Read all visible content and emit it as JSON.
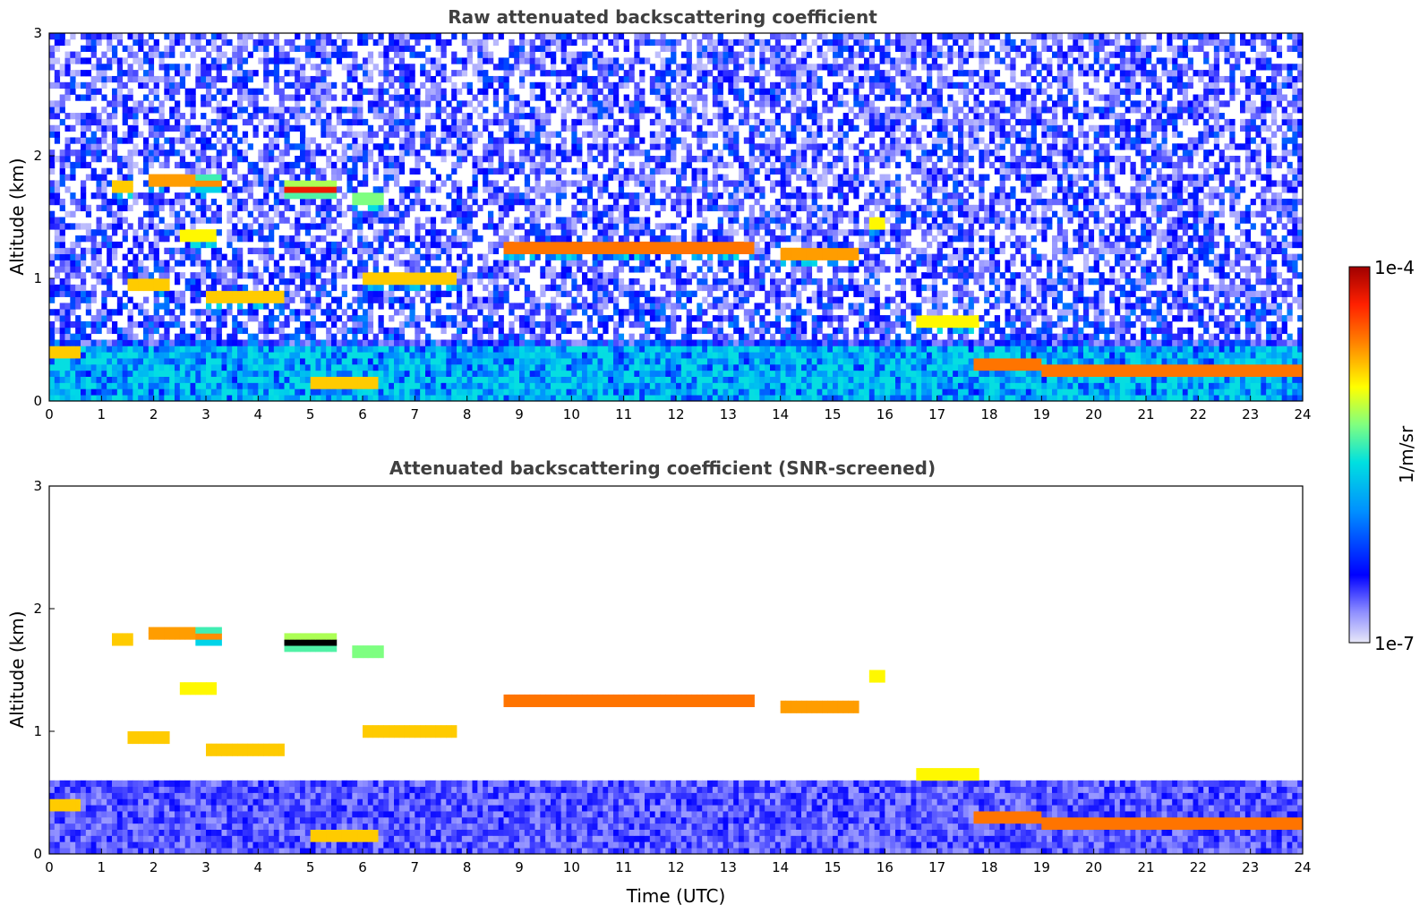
{
  "chart_data": [
    {
      "type": "heatmap",
      "title": "Raw attenuated backscattering coefficient",
      "xlabel": "",
      "ylabel": "Altitude (km)",
      "xlim": [
        0,
        24
      ],
      "ylim": [
        0,
        3
      ],
      "xticks": [
        "0",
        "1",
        "2",
        "3",
        "4",
        "5",
        "6",
        "7",
        "8",
        "9",
        "10",
        "11",
        "12",
        "13",
        "14",
        "15",
        "16",
        "17",
        "18",
        "19",
        "20",
        "21",
        "22",
        "23",
        "24"
      ],
      "yticks": [
        "0",
        "1",
        "2",
        "3"
      ],
      "cloud_layers": [
        {
          "t0": 0.0,
          "t1": 0.6,
          "alt": 0.4,
          "strength": 0.9
        },
        {
          "t0": 1.2,
          "t1": 1.6,
          "alt": 1.75,
          "strength": 0.9
        },
        {
          "t0": 1.9,
          "t1": 2.8,
          "alt": 1.8,
          "strength": 0.95
        },
        {
          "t0": 2.8,
          "t1": 3.3,
          "alt": 1.78,
          "strength": 0.8
        },
        {
          "t0": 4.5,
          "t1": 5.5,
          "alt": 1.73,
          "strength": 0.95
        },
        {
          "t0": 5.8,
          "t1": 6.4,
          "alt": 1.65,
          "strength": 0.7
        },
        {
          "t0": 2.5,
          "t1": 3.2,
          "alt": 1.35,
          "strength": 0.85
        },
        {
          "t0": 1.5,
          "t1": 2.3,
          "alt": 0.95,
          "strength": 0.9
        },
        {
          "t0": 3.0,
          "t1": 4.5,
          "alt": 0.85,
          "strength": 0.9
        },
        {
          "t0": 6.0,
          "t1": 7.8,
          "alt": 1.0,
          "strength": 0.9
        },
        {
          "t0": 8.7,
          "t1": 13.5,
          "alt": 1.25,
          "strength": 1.0
        },
        {
          "t0": 14.0,
          "t1": 15.5,
          "alt": 1.2,
          "strength": 0.95
        },
        {
          "t0": 15.7,
          "t1": 16.0,
          "alt": 1.45,
          "strength": 0.85
        },
        {
          "t0": 16.6,
          "t1": 17.8,
          "alt": 0.65,
          "strength": 0.85
        },
        {
          "t0": 17.7,
          "t1": 19.0,
          "alt": 0.3,
          "strength": 1.0
        },
        {
          "t0": 19.0,
          "t1": 24.0,
          "alt": 0.25,
          "strength": 1.0
        },
        {
          "t0": 5.0,
          "t1": 6.3,
          "alt": 0.15,
          "strength": 0.9
        }
      ]
    },
    {
      "type": "heatmap",
      "title": "Attenuated backscattering coefficient (SNR-screened)",
      "xlabel": "Time (UTC)",
      "ylabel": "Altitude (km)",
      "xlim": [
        0,
        24
      ],
      "ylim": [
        0,
        3
      ],
      "xticks": [
        "0",
        "1",
        "2",
        "3",
        "4",
        "5",
        "6",
        "7",
        "8",
        "9",
        "10",
        "11",
        "12",
        "13",
        "14",
        "15",
        "16",
        "17",
        "18",
        "19",
        "20",
        "21",
        "22",
        "23",
        "24"
      ],
      "yticks": [
        "0",
        "1",
        "2",
        "3"
      ]
    }
  ],
  "colorbar": {
    "label": "1/m/sr",
    "max_label": "1e-4",
    "min_label": "1e-7",
    "colors": [
      "#e8e8f8",
      "#7070ff",
      "#0000ff",
      "#00a0ff",
      "#00e0e0",
      "#80ff80",
      "#ffff00",
      "#ff8000",
      "#ff2000",
      "#a00000"
    ]
  }
}
